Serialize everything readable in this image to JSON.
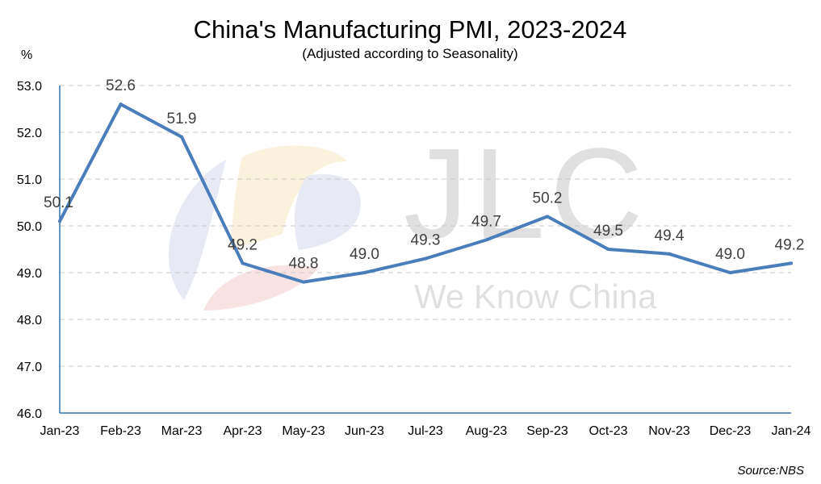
{
  "chart_data": {
    "type": "line",
    "title": "China's Manufacturing PMI, 2023-2024",
    "subtitle": "(Adjusted according to Seasonality)",
    "ylabel": "%",
    "xlabel": "",
    "categories": [
      "Jan-23",
      "Feb-23",
      "Mar-23",
      "Apr-23",
      "May-23",
      "Jun-23",
      "Jul-23",
      "Aug-23",
      "Sep-23",
      "Oct-23",
      "Nov-23",
      "Dec-23",
      "Jan-24"
    ],
    "series": [
      {
        "name": "Manufacturing PMI",
        "values": [
          50.1,
          52.6,
          51.9,
          49.2,
          48.8,
          49.0,
          49.3,
          49.7,
          50.2,
          49.5,
          49.4,
          49.0,
          49.2
        ],
        "labels": [
          "50.1",
          "52.6",
          "51.9",
          "49.2",
          "48.8",
          "49.0",
          "49.3",
          "49.7",
          "50.2",
          "49.5",
          "49.4",
          "49.0",
          "49.2"
        ]
      }
    ],
    "ylim": [
      46.0,
      53.0
    ],
    "yticks": [
      "46.0",
      "47.0",
      "48.0",
      "49.0",
      "50.0",
      "51.0",
      "52.0",
      "53.0"
    ],
    "grid": true,
    "source": "Source:NBS",
    "colors": {
      "line": "#4a7ebb",
      "axis": "#2e75b6",
      "label": "#404040"
    }
  },
  "watermark": {
    "brand": "JLC",
    "tagline": "We Know China"
  }
}
